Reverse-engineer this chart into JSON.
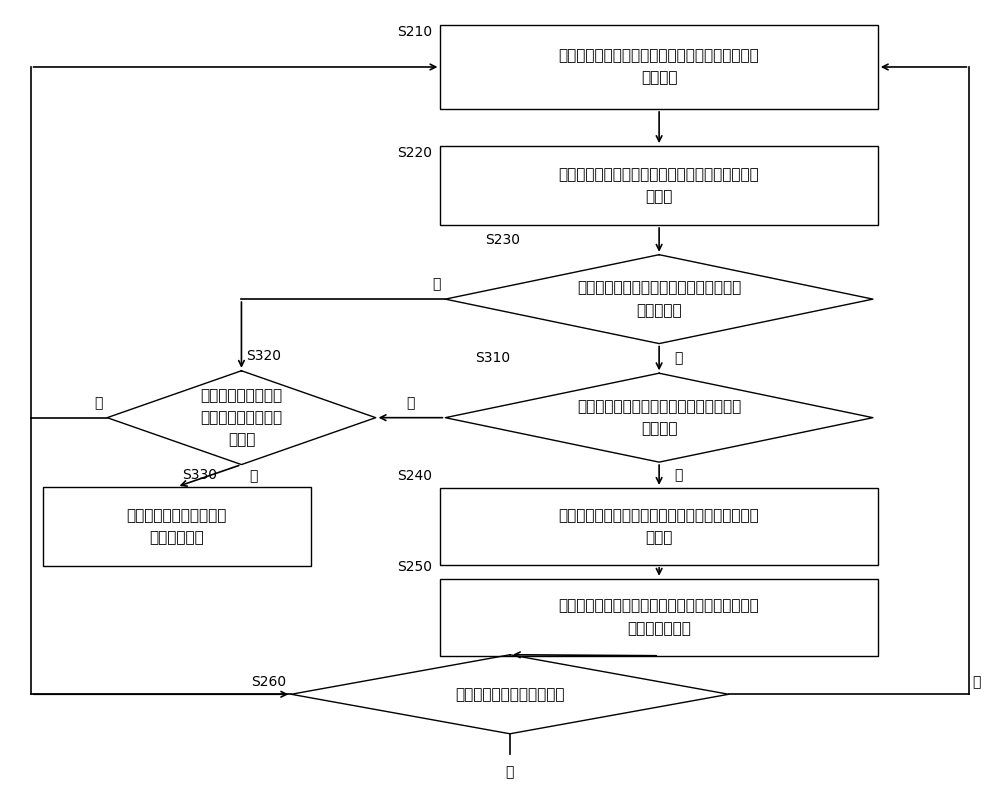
{
  "bg_color": "#ffffff",
  "box_edge_color": "#000000",
  "arrow_color": "#000000",
  "text_color": "#000000",
  "font_size": 11,
  "label_font_size": 10,
  "nodes": {
    "S210_text": "检测各频段载波的发射通道中的中频数字功率和天\n馈口功率",
    "S220_text": "根据中频数字功率和天馈口功率计算各频段载波的\n功率差",
    "S230_text": "根据各频段载波的功率差判断是否需要进\n行增益调整",
    "S310_text": "判断各频段载波的可调增益是否均未调整\n至边界值",
    "S320_text": "判断各频段载波的可\n调增益是否均调整至\n边界值",
    "S330_text": "将各频段载波的可调增益\n往中心值回调",
    "S240_text": "根据各频段载波的功率差确定各频段载波的增益变\n化趋势",
    "S250_text": "根据各频段载波的增益变化趋势对各频段载波执行\n相应的增益调整",
    "S260_text": "判断计时是否达到预设时长"
  }
}
